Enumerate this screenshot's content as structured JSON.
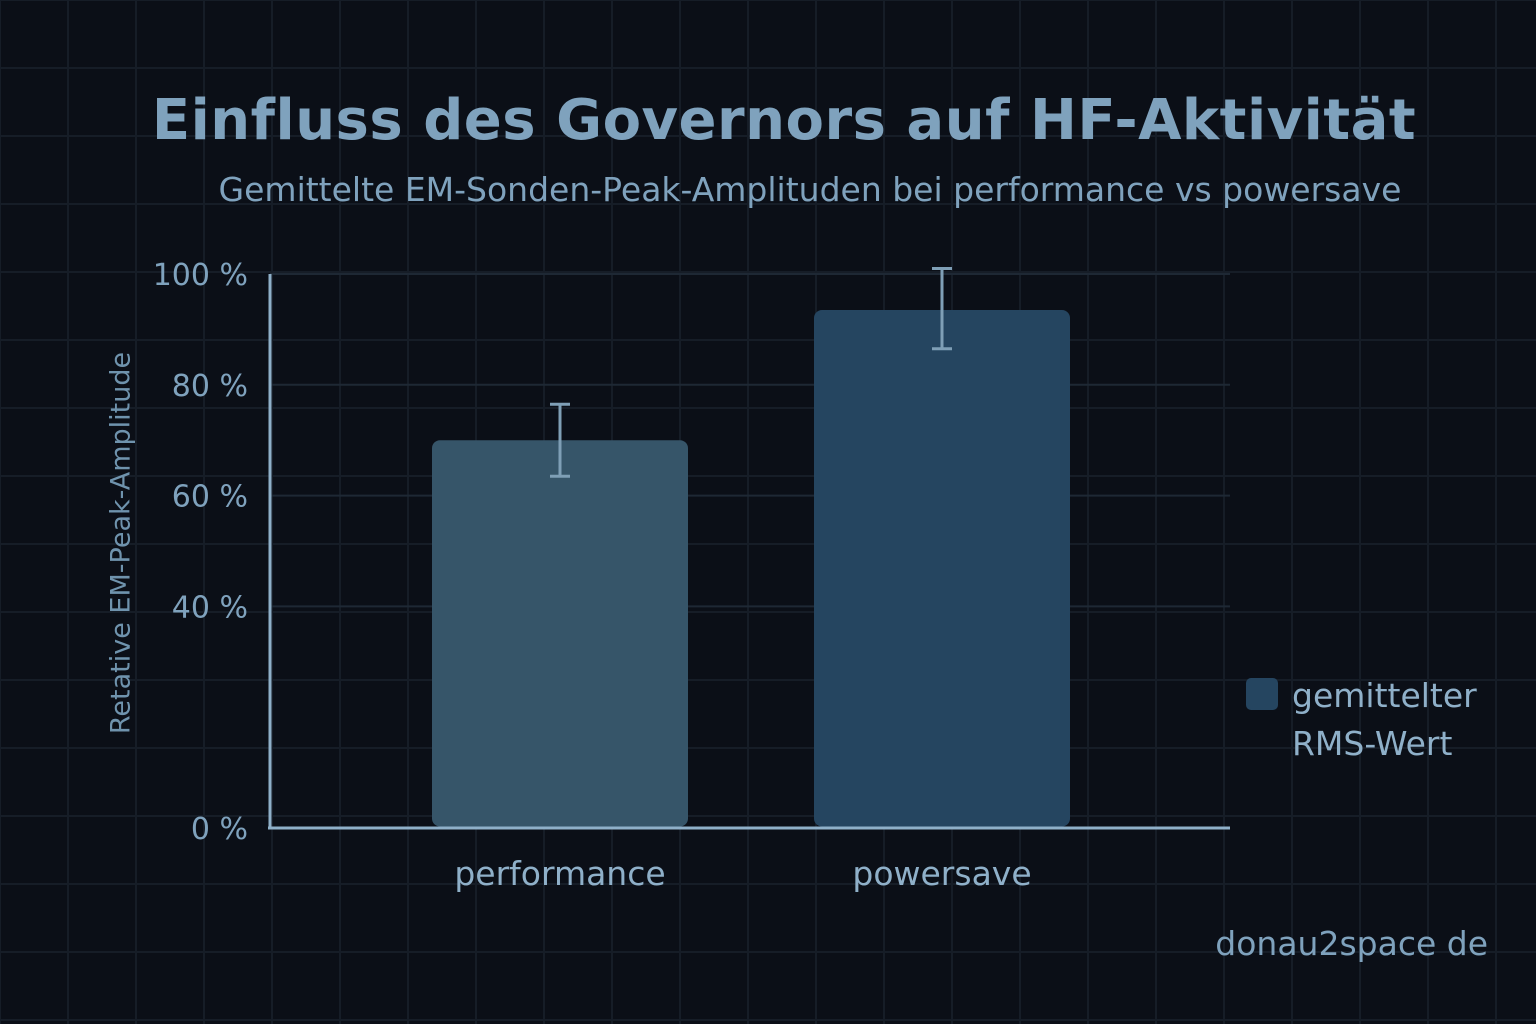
{
  "chart_data": {
    "type": "bar",
    "title": "Einfluss des Governors auf HF-Aktivität",
    "subtitle": "Gemittelte EM-Sonden-Peak-Amplituden bei performance vs powersave",
    "xlabel": "",
    "ylabel": "Retative EM-Peak-Amplitude",
    "categories": [
      "performance",
      "powersave"
    ],
    "series": [
      {
        "name": "gemittelter RMS-Wert",
        "values": [
          70,
          93.5
        ],
        "error_low": [
          63.5,
          86.5
        ],
        "error_high": [
          76.5,
          101
        ],
        "colors": [
          "#365569",
          "#254560"
        ]
      }
    ],
    "ylim": [
      0,
      100
    ],
    "yticks": [
      0,
      40,
      60,
      80,
      100
    ],
    "ytick_labels": [
      "0 %",
      "40 %",
      "60 %",
      "80 %",
      "100 %"
    ],
    "grid": true,
    "legend_position": "right",
    "axis_color": "#8fb0c9",
    "background": "#0b0f17"
  },
  "watermark": "donau2space de"
}
